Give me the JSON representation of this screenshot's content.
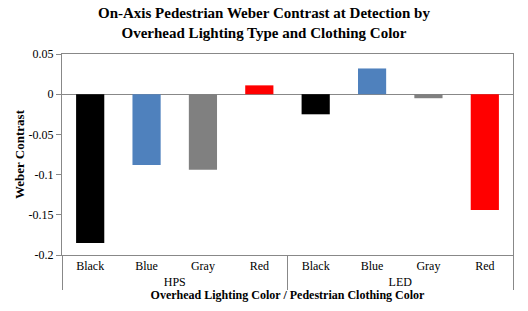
{
  "chart_data": {
    "type": "bar",
    "title": "On-Axis Pedestrian Weber Contrast at Detection by\nOverhead Lighting Type and Clothing Color",
    "x_label": "Overhead Lighting Color / Pedestrian Clothing Color",
    "y_label": "Weber Contrast",
    "groups": [
      "HPS",
      "HPS",
      "HPS",
      "HPS",
      "LED",
      "LED",
      "LED",
      "LED"
    ],
    "categories": [
      "Black",
      "Blue",
      "Gray",
      "Red",
      "Black",
      "Blue",
      "Gray",
      "Red"
    ],
    "values": [
      -0.185,
      -0.088,
      -0.094,
      0.011,
      -0.025,
      0.032,
      -0.005,
      -0.144
    ],
    "colors": [
      "#000000",
      "#4f81bd",
      "#808080",
      "#ff0000",
      "#000000",
      "#4f81bd",
      "#808080",
      "#ff0000"
    ],
    "ylim": [
      -0.2,
      0.05
    ],
    "yticks": [
      -0.2,
      -0.15,
      -0.1,
      -0.05,
      0,
      0.05
    ],
    "grid": false
  }
}
